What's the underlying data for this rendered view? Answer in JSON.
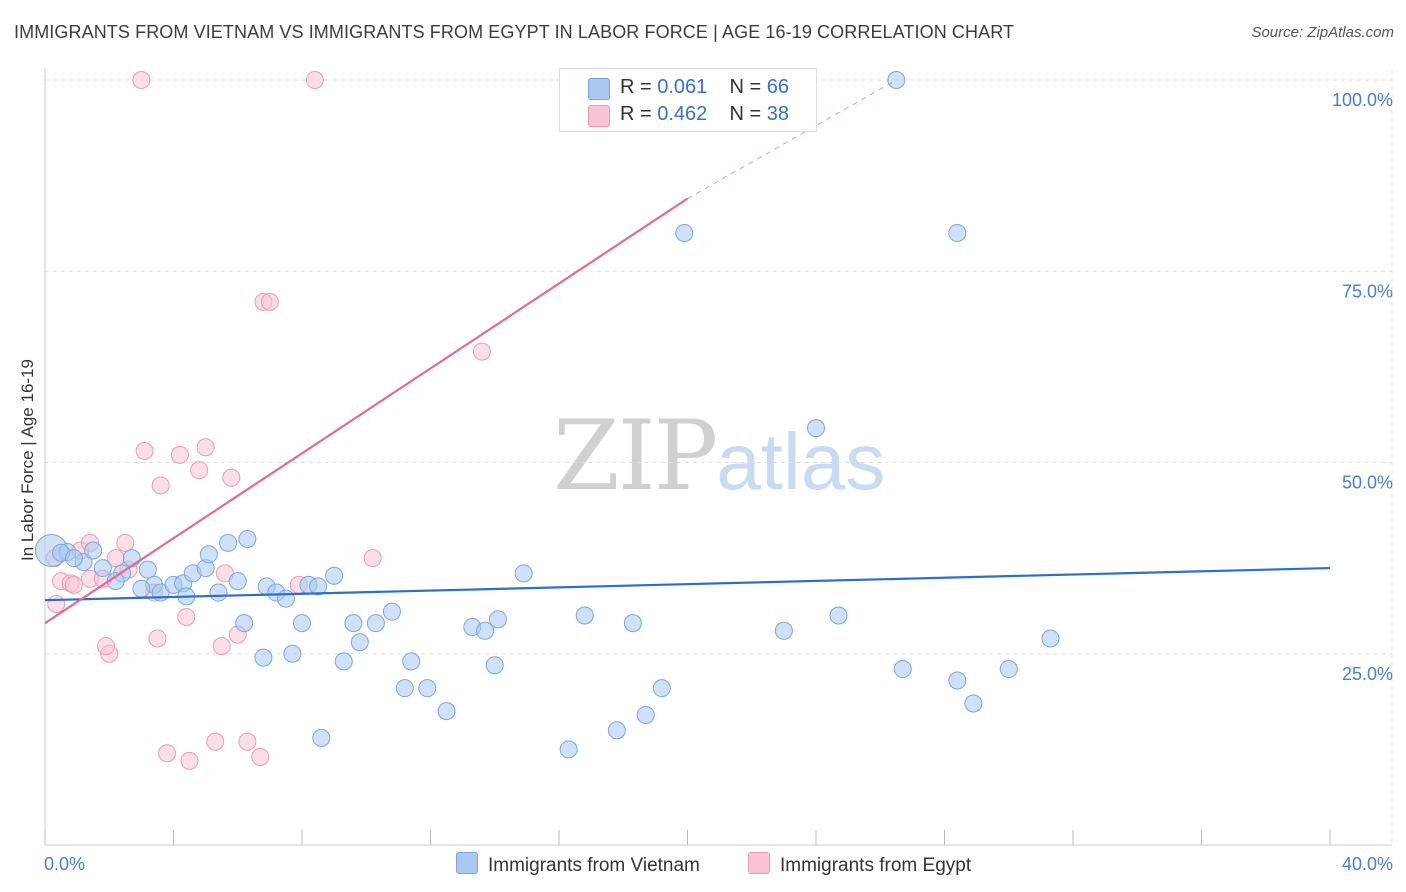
{
  "title": "IMMIGRANTS FROM VIETNAM VS IMMIGRANTS FROM EGYPT IN LABOR FORCE | AGE 16-19 CORRELATION CHART",
  "source": "Source: ZipAtlas.com",
  "watermark": {
    "zip": "ZIP",
    "atlas": "atlas"
  },
  "legend": {
    "rows": [
      {
        "r_label": "R =",
        "r_value": "0.061",
        "n_label": "N =",
        "n_value": "66"
      },
      {
        "r_label": "R =",
        "r_value": "0.462",
        "n_label": "N =",
        "n_value": "38"
      }
    ]
  },
  "bottom_legend": {
    "vietnam": "Immigrants from Vietnam",
    "egypt": "Immigrants from Egypt"
  },
  "colors": {
    "vietnam_fill": "#aac8f0",
    "vietnam_stroke": "#7aa6e0",
    "vietnam_line": "#2a6fcc",
    "egypt_fill": "#f8c4d4",
    "egypt_stroke": "#ee9ab4",
    "egypt_line": "#e46a92",
    "grid": "#dddddd",
    "tick": "#4a7fd0"
  },
  "chart_data": {
    "type": "scatter",
    "title": "IMMIGRANTS FROM VIETNAM VS IMMIGRANTS FROM EGYPT IN LABOR FORCE | AGE 16-19 CORRELATION CHART",
    "xlabel": "",
    "ylabel": "In Labor Force | Age 16-19",
    "xlim": [
      0,
      40
    ],
    "ylim": [
      0,
      103
    ],
    "x_tick_labels": [
      "0.0%",
      "40.0%"
    ],
    "y_ticks": [
      25,
      50,
      75,
      100
    ],
    "y_tick_labels": [
      "25.0%",
      "50.0%",
      "75.0%",
      "100.0%"
    ],
    "grid": true,
    "series": [
      {
        "name": "Immigrants from Vietnam",
        "r": 0.061,
        "n": 66,
        "trend": {
          "x": [
            0,
            40
          ],
          "y": [
            32.0,
            36.2
          ],
          "dashed_extension": false
        },
        "points": [
          [
            0.2,
            38.5
          ],
          [
            0.7,
            38.3
          ],
          [
            0.5,
            38.2
          ],
          [
            1.2,
            37.0
          ],
          [
            1.8,
            36.2
          ],
          [
            2.4,
            35.5
          ],
          [
            2.2,
            34.5
          ],
          [
            2.7,
            37.5
          ],
          [
            3.2,
            36.0
          ],
          [
            3.4,
            34.0
          ],
          [
            3.6,
            33.0
          ],
          [
            4.0,
            34.0
          ],
          [
            4.3,
            34.2
          ],
          [
            4.4,
            32.5
          ],
          [
            4.6,
            35.5
          ],
          [
            5.0,
            36.2
          ],
          [
            5.1,
            38.0
          ],
          [
            5.4,
            33.0
          ],
          [
            5.7,
            39.5
          ],
          [
            6.0,
            34.5
          ],
          [
            6.3,
            40.0
          ],
          [
            6.2,
            29.0
          ],
          [
            6.8,
            24.5
          ],
          [
            6.9,
            33.8
          ],
          [
            7.2,
            33.0
          ],
          [
            7.5,
            32.2
          ],
          [
            7.7,
            25.0
          ],
          [
            8.0,
            29.0
          ],
          [
            8.2,
            34.0
          ],
          [
            8.5,
            33.8
          ],
          [
            8.6,
            14.0
          ],
          [
            9.0,
            35.2
          ],
          [
            9.3,
            24.0
          ],
          [
            9.6,
            29.0
          ],
          [
            9.8,
            26.5
          ],
          [
            10.3,
            29.0
          ],
          [
            10.8,
            30.5
          ],
          [
            11.2,
            20.5
          ],
          [
            11.4,
            24.0
          ],
          [
            11.9,
            20.5
          ],
          [
            12.5,
            17.5
          ],
          [
            13.3,
            28.5
          ],
          [
            13.7,
            28.0
          ],
          [
            14.0,
            23.5
          ],
          [
            14.1,
            29.5
          ],
          [
            14.9,
            35.5
          ],
          [
            16.3,
            12.5
          ],
          [
            16.8,
            30.0
          ],
          [
            17.8,
            15.0
          ],
          [
            18.3,
            29.0
          ],
          [
            18.7,
            17.0
          ],
          [
            19.2,
            20.5
          ],
          [
            19.9,
            80.0
          ],
          [
            23.0,
            28.0
          ],
          [
            24.0,
            54.5
          ],
          [
            24.7,
            30.0
          ],
          [
            26.5,
            100.0
          ],
          [
            26.7,
            23.0
          ],
          [
            28.4,
            21.5
          ],
          [
            28.4,
            80.0
          ],
          [
            28.9,
            18.5
          ],
          [
            30.0,
            23.0
          ],
          [
            31.3,
            27.0
          ],
          [
            0.9,
            37.5
          ],
          [
            1.5,
            38.5
          ],
          [
            3.0,
            33.5
          ]
        ]
      },
      {
        "name": "Immigrants from Egypt",
        "r": 0.462,
        "n": 38,
        "trend": {
          "x": [
            0,
            20
          ],
          "y": [
            29.0,
            84.5
          ],
          "dashed_extension": {
            "x": [
              20,
              26.5
            ],
            "y": [
              84.5,
              100
            ]
          }
        },
        "points": [
          [
            0.3,
            37.5
          ],
          [
            0.5,
            34.5
          ],
          [
            0.8,
            34.2
          ],
          [
            1.1,
            38.5
          ],
          [
            1.4,
            39.5
          ],
          [
            1.4,
            34.8
          ],
          [
            1.8,
            34.8
          ],
          [
            2.0,
            25.0
          ],
          [
            2.2,
            37.5
          ],
          [
            2.5,
            39.5
          ],
          [
            2.6,
            36.0
          ],
          [
            3.0,
            100.0
          ],
          [
            3.1,
            51.5
          ],
          [
            3.4,
            33.0
          ],
          [
            3.5,
            27.0
          ],
          [
            3.6,
            47.0
          ],
          [
            3.8,
            12.0
          ],
          [
            4.2,
            51.0
          ],
          [
            4.4,
            29.8
          ],
          [
            4.5,
            11.0
          ],
          [
            4.8,
            49.0
          ],
          [
            5.0,
            52.0
          ],
          [
            5.3,
            13.5
          ],
          [
            5.5,
            26.0
          ],
          [
            5.8,
            48.0
          ],
          [
            6.0,
            27.5
          ],
          [
            6.3,
            13.5
          ],
          [
            6.7,
            11.5
          ],
          [
            6.8,
            71.0
          ],
          [
            7.0,
            71.0
          ],
          [
            7.9,
            34.0
          ],
          [
            8.4,
            100.0
          ],
          [
            10.2,
            37.5
          ],
          [
            13.6,
            64.5
          ],
          [
            1.9,
            26.0
          ],
          [
            0.9,
            34.0
          ],
          [
            0.35,
            31.5
          ],
          [
            5.6,
            35.5
          ]
        ]
      }
    ]
  }
}
